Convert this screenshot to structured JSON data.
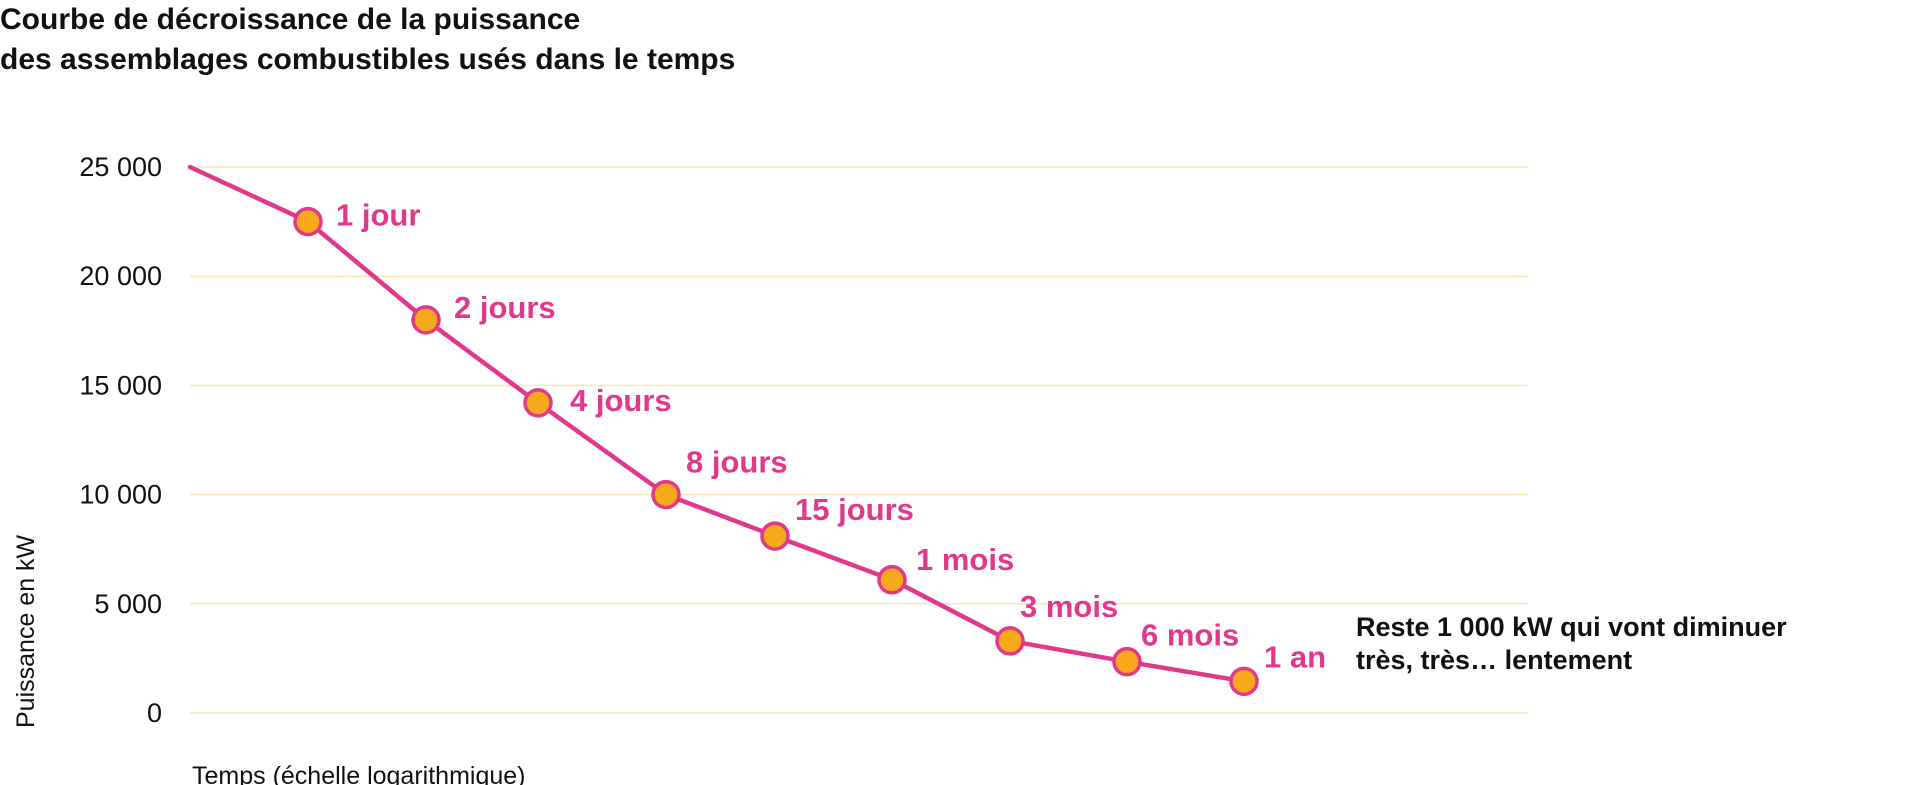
{
  "colors": {
    "line": "#e2388b",
    "marker_fill": "#f7a81b",
    "marker_stroke": "#e2388b",
    "grid": "#f6e6b4",
    "label": "#e2388b",
    "text": "#111111"
  },
  "chart_data": {
    "type": "line",
    "title_lines": [
      "Courbe de décroissance de la puissance",
      "des assemblages combustibles usés dans le temps"
    ],
    "xlabel": "Temps (échelle logarithmique)",
    "ylabel": "Puissance en kW",
    "x_scale": "log",
    "ylim": [
      0,
      25000
    ],
    "yticks": [
      0,
      5000,
      10000,
      15000,
      20000,
      25000
    ],
    "ytick_labels": [
      "0",
      "5 000",
      "10 000",
      "15 000",
      "20 000",
      "25 000"
    ],
    "grid": "horizontal",
    "start_value": 25000,
    "points": [
      {
        "label": "1 jour",
        "value": 22500
      },
      {
        "label": "2 jours",
        "value": 18000
      },
      {
        "label": "4 jours",
        "value": 14200
      },
      {
        "label": "8 jours",
        "value": 10000
      },
      {
        "label": "15 jours",
        "value": 8100
      },
      {
        "label": "1 mois",
        "value": 6100
      },
      {
        "label": "3 mois",
        "value": 3300
      },
      {
        "label": "6 mois",
        "value": 2350
      },
      {
        "label": "1 an",
        "value": 1450
      }
    ],
    "annotation_lines": [
      "Reste 1 000 kW qui vont diminuer",
      "très, très… lentement"
    ]
  }
}
